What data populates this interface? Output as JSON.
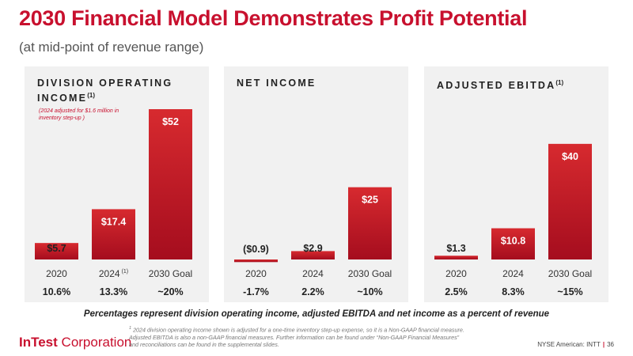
{
  "header": {
    "title": "2030 Financial Model Demonstrates Profit Potential",
    "subtitle": "(at mid-point of revenue range)"
  },
  "colors": {
    "accent": "#c8102e",
    "bar_light": "#d72a2f",
    "bar_dark": "#a50d1e"
  },
  "chart_data": [
    {
      "type": "bar",
      "title": "DIVISION OPERATING INCOME",
      "title_sup": "(1)",
      "note": "(2024 adjusted for $1.6 million in inventory step-up )",
      "categories": [
        "2020",
        "2024",
        "2030 Goal"
      ],
      "category_sups": [
        "",
        "(1)",
        ""
      ],
      "values": [
        5.7,
        17.4,
        52
      ],
      "labels": [
        "$5.7",
        "$17.4",
        "$52"
      ],
      "percents": [
        "10.6%",
        "13.3%",
        "~20%"
      ],
      "ylim": [
        0,
        52
      ]
    },
    {
      "type": "bar",
      "title": "NET INCOME",
      "title_sup": "",
      "note": "",
      "categories": [
        "2020",
        "2024",
        "2030 Goal"
      ],
      "category_sups": [
        "",
        "",
        ""
      ],
      "values": [
        -0.9,
        2.9,
        25
      ],
      "labels": [
        "($0.9)",
        "$2.9",
        "$25"
      ],
      "percents": [
        "-1.7%",
        "2.2%",
        "~10%"
      ],
      "ylim": [
        0,
        52
      ]
    },
    {
      "type": "bar",
      "title": "ADJUSTED EBITDA",
      "title_sup": "(1)",
      "note": "",
      "categories": [
        "2020",
        "2024",
        "2030 Goal"
      ],
      "category_sups": [
        "",
        "",
        ""
      ],
      "values": [
        1.3,
        10.8,
        40
      ],
      "labels": [
        "$1.3",
        "$10.8",
        "$40"
      ],
      "percents": [
        "2.5%",
        "8.3%",
        "~15%"
      ],
      "ylim": [
        0,
        52
      ]
    }
  ],
  "caption": "Percentages represent division operating income, adjusted EBITDA and net income as a percent of revenue",
  "footnote": {
    "marker": "1",
    "line1": "2024 division operating income shown is adjusted for a one-time inventory step-up expense, so it is a Non-GAAP financial measure.",
    "line2": "Adjusted EBITDA is also a non-GAAP financial measures.  Further information can be found under “Non-GAAP Financial Measures”",
    "line3": "and reconciliations  can be found in the supplemental slides."
  },
  "footer": {
    "logo_bold": "InTest",
    "logo_rest": " Corporation",
    "ticker": "NYSE American: INTT",
    "page": "36"
  }
}
